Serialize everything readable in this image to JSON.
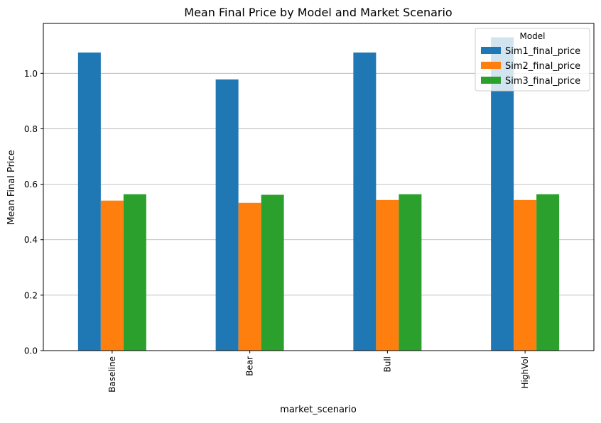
{
  "chart_data": {
    "type": "bar",
    "title": "Mean Final Price by Model and Market Scenario",
    "xlabel": "market_scenario",
    "ylabel": "Mean Final Price",
    "categories": [
      "Baseline",
      "Bear",
      "Bull",
      "HighVol"
    ],
    "series": [
      {
        "name": "Sim1_final_price",
        "color": "#1f77b4",
        "values": [
          1.075,
          0.978,
          1.075,
          1.13
        ]
      },
      {
        "name": "Sim2_final_price",
        "color": "#ff7f0e",
        "values": [
          0.541,
          0.533,
          0.543,
          0.543
        ]
      },
      {
        "name": "Sim3_final_price",
        "color": "#2ca02c",
        "values": [
          0.564,
          0.562,
          0.564,
          0.564
        ]
      }
    ],
    "ylim": [
      0,
      1.18
    ],
    "yticks": [
      0.0,
      0.2,
      0.4,
      0.6,
      0.8,
      1.0
    ],
    "grid": "y",
    "legend": {
      "title": "Model",
      "placement": "top-right"
    }
  }
}
